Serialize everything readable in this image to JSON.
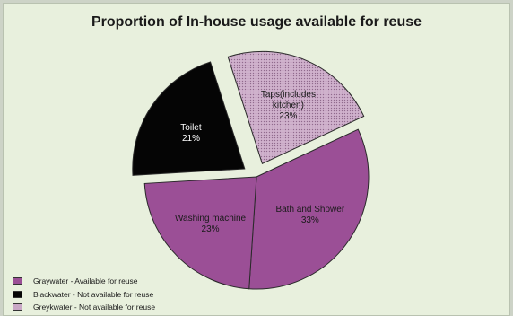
{
  "title": "Proportion of In-house usage available for reuse",
  "chart_data": {
    "type": "pie",
    "title": "Proportion of In-house usage available for reuse",
    "slices": [
      {
        "label_lines": [
          "Bath and Shower",
          "33%"
        ],
        "value": 33,
        "color": "#9b4f96",
        "exploded": false
      },
      {
        "label_lines": [
          "Washing machine",
          "23%"
        ],
        "value": 23,
        "color": "#9b4f96",
        "exploded": false
      },
      {
        "label_lines": [
          "Toilet",
          "21%"
        ],
        "value": 21,
        "color": "#050505",
        "exploded": true
      },
      {
        "label_lines": [
          "Taps(includes",
          "kitchen)",
          "23%"
        ],
        "value": 23,
        "color": "#c9a8c6",
        "exploded": true,
        "pattern": "dotted"
      }
    ],
    "legend": [
      {
        "label": "Graywater - Available for reuse",
        "color": "#9b4f96"
      },
      {
        "label": "Blackwater - Not available for reuse",
        "color": "#050505"
      },
      {
        "label": "Greykwater - Not available for reuse",
        "color": "#c9a8c6"
      }
    ]
  }
}
